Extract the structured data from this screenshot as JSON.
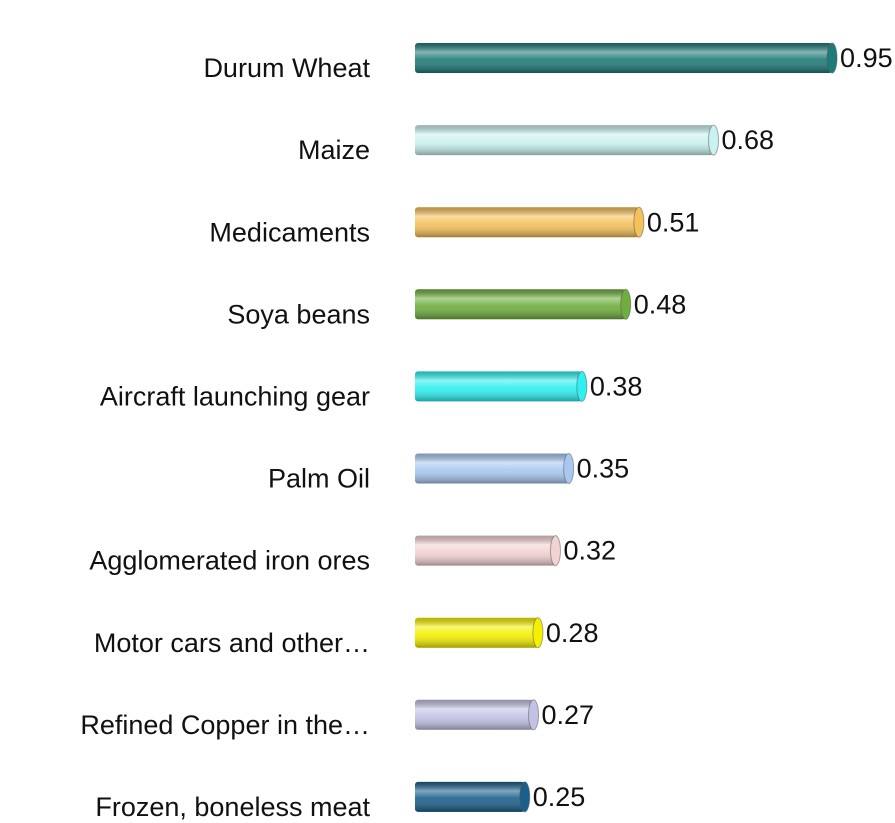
{
  "chart_data": {
    "type": "bar",
    "orientation": "horizontal",
    "categories": [
      "Durum Wheat",
      "Maize",
      "Medicaments",
      "Soya beans",
      "Aircraft launching gear",
      "Palm Oil",
      "Agglomerated iron ores",
      "Motor cars and other…",
      "Refined Copper in the…",
      "Frozen, boneless meat"
    ],
    "values": [
      0.95,
      0.68,
      0.51,
      0.48,
      0.38,
      0.35,
      0.32,
      0.28,
      0.27,
      0.25
    ],
    "colors": [
      "#1f7b78",
      "#c9f2f0",
      "#f5c15a",
      "#6fae3e",
      "#2ff0f0",
      "#a9c8f0",
      "#f2d2d2",
      "#f5f000",
      "#c2c2e6",
      "#1a5f8a"
    ]
  }
}
